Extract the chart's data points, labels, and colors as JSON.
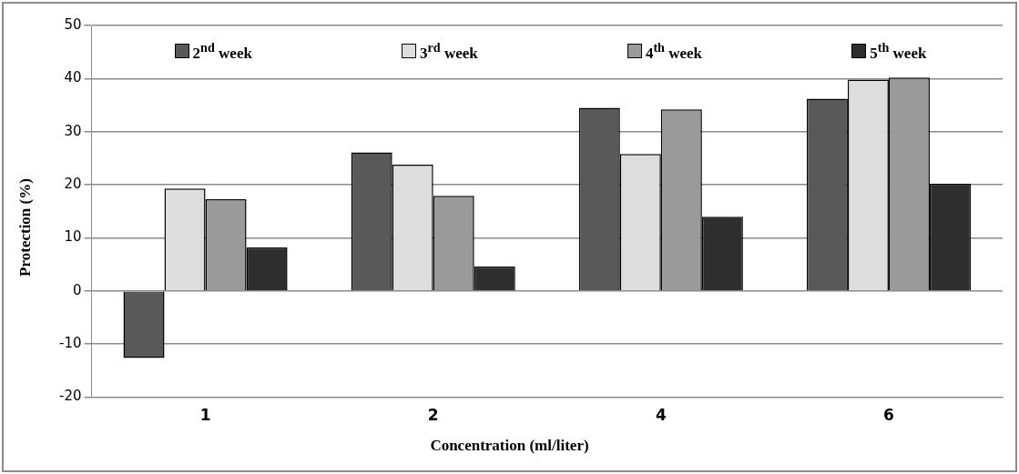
{
  "chart_data": {
    "type": "bar",
    "xlabel": "Concentration (ml/liter)",
    "ylabel": "Protection (%)",
    "categories": [
      "1",
      "2",
      "4",
      "6"
    ],
    "series": [
      {
        "name": "2$^{nd}$ week",
        "color": "#595959",
        "values": [
          -12.6,
          26.1,
          34.5,
          36.2
        ]
      },
      {
        "name": "3$^{rd}$ week",
        "color": "#dddddd",
        "values": [
          19.3,
          23.8,
          25.8,
          39.8
        ]
      },
      {
        "name": "4$^{th}$ week",
        "color": "#9a9a9a",
        "values": [
          17.3,
          17.9,
          34.2,
          40.2
        ]
      },
      {
        "name": "5$^{th}$ week",
        "color": "#2e2e2e",
        "values": [
          8.2,
          4.6,
          14.0,
          20.2
        ]
      }
    ],
    "ylim": [
      -20,
      50
    ],
    "yticks": [
      -20,
      -10,
      0,
      10,
      20,
      30,
      40,
      50
    ],
    "grid": "y",
    "legend": "top"
  }
}
